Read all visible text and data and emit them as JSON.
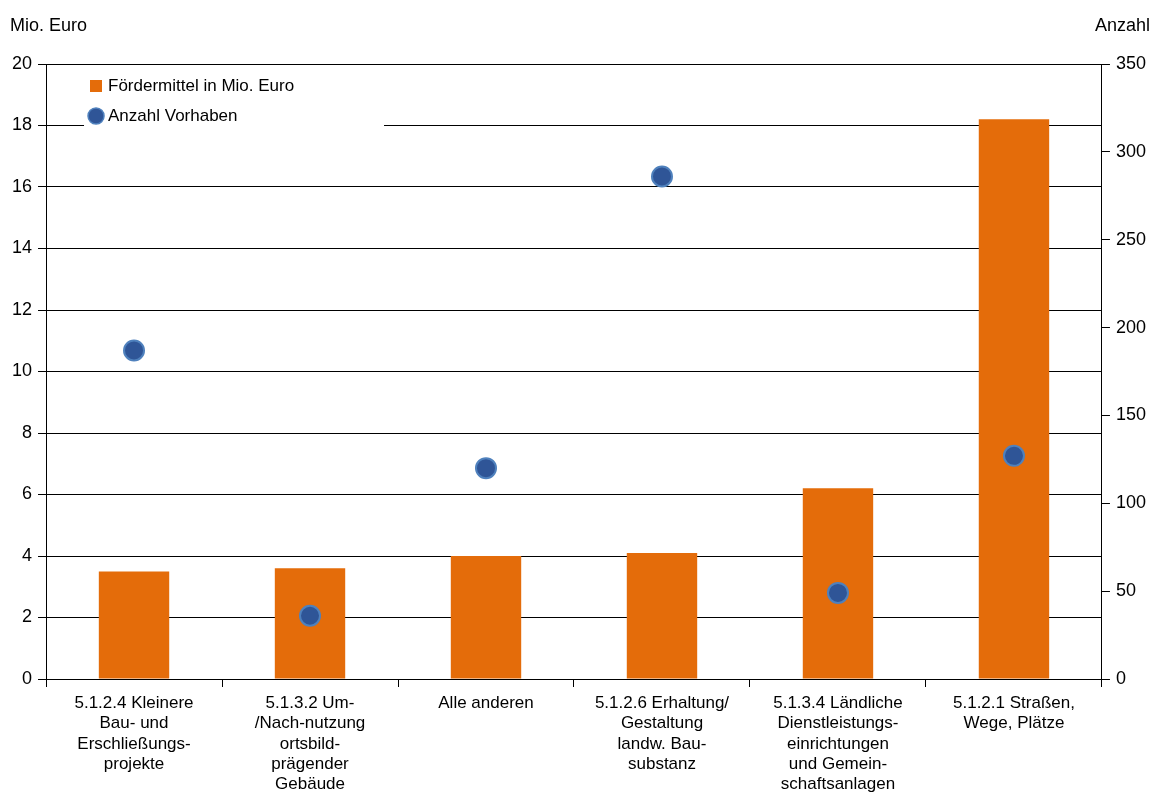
{
  "chart_data": {
    "type": "bar",
    "ylabel": "Mio. Euro",
    "y2label": "Anzahl",
    "categories": [
      "5.1.2.4 Kleinere Bau- und Erschließungs-projekte",
      "5.1.3.2 Um-/Nach-nutzung ortsbild-prägender Gebäude",
      "Alle anderen",
      "5.1.2.6 Erhaltung/ Gestaltung landw. Bau-substanz",
      "5.1.3.4 Ländliche Dienstleistungs-einrichtungen und Gemein-schaftsanlagen",
      "5.1.2.1 Straßen, Wege, Plätze"
    ],
    "series": [
      {
        "name": "Fördermittel in Mio. Euro",
        "color": "#e46c0a",
        "values": [
          3.5,
          3.6,
          4.0,
          4.1,
          6.2,
          18.2
        ]
      },
      {
        "name": "Anzahl Vorhaben",
        "type": "scatter",
        "axis": "y2",
        "color": "#2f5597",
        "values": [
          187,
          36,
          120,
          286,
          49,
          127
        ]
      }
    ],
    "ylim": [
      0,
      20
    ],
    "yticks": [
      0,
      2,
      4,
      6,
      8,
      10,
      12,
      14,
      16,
      18,
      20
    ],
    "y2lim": [
      0,
      350
    ],
    "y2ticks": [
      0,
      50,
      100,
      150,
      200,
      250,
      300,
      350
    ],
    "grid": "y",
    "legend": "top left",
    "marker": "circle"
  }
}
